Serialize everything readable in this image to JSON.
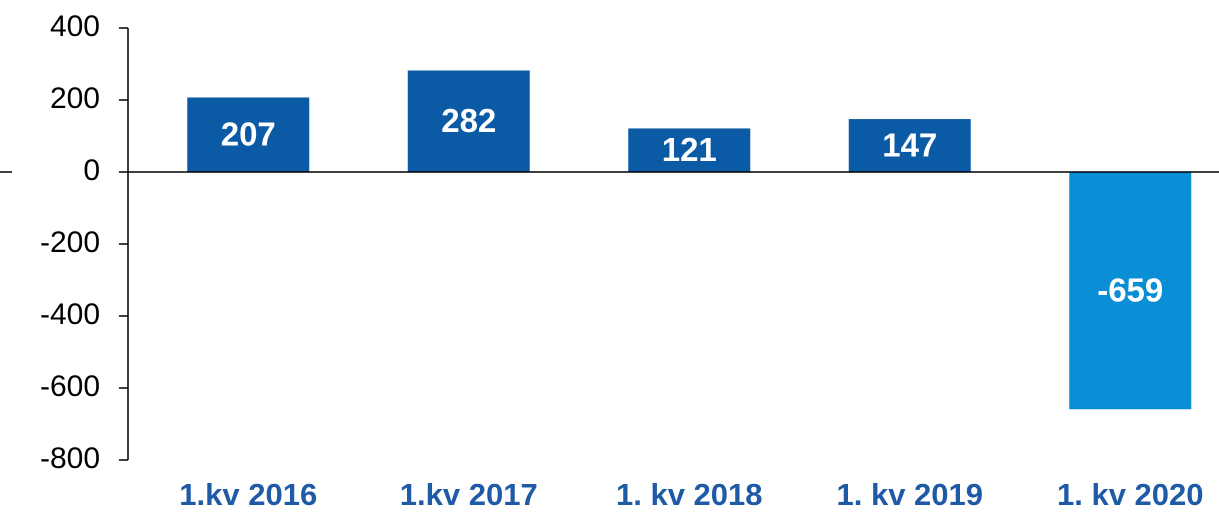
{
  "chart_data": {
    "type": "bar",
    "categories": [
      "1.kv 2016",
      "1.kv 2017",
      "1. kv 2018",
      "1. kv 2019",
      "1. kv 2020"
    ],
    "values": [
      207,
      282,
      121,
      147,
      -659
    ],
    "colors": [
      "#0a5aa5",
      "#0a5aa5",
      "#0a5aa5",
      "#0a5aa5",
      "#0a8fd6"
    ],
    "ylim": [
      -800,
      400
    ],
    "yticks": [
      -800,
      -600,
      -400,
      -200,
      0,
      200,
      400
    ],
    "grid": false
  }
}
